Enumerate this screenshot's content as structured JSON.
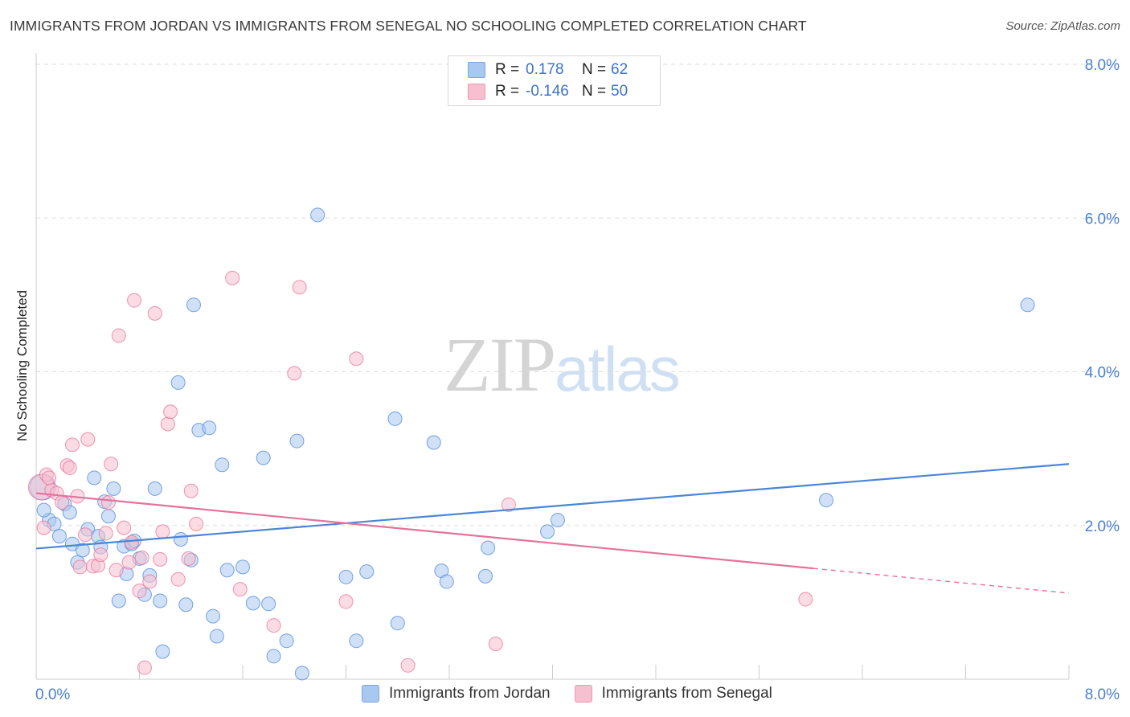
{
  "title": "IMMIGRANTS FROM JORDAN VS IMMIGRANTS FROM SENEGAL NO SCHOOLING COMPLETED CORRELATION CHART",
  "source": "Source: ZipAtlas.com",
  "watermark": {
    "part1": "ZIP",
    "part2": "atlas"
  },
  "legend": {
    "rows": [
      {
        "r_label": "R =",
        "r_value": "0.178",
        "n_label": "N =",
        "n_value": "62",
        "color": "#a9c8f0",
        "border": "#7aa6e0"
      },
      {
        "r_label": "R =",
        "r_value": "-0.146",
        "n_label": "N =",
        "n_value": "50",
        "color": "#f7c0d0",
        "border": "#ee98b2"
      }
    ]
  },
  "bottom_legend": [
    {
      "label": "Immigrants from Jordan",
      "color": "#a9c8f0",
      "border": "#7aa6e0"
    },
    {
      "label": "Immigrants from Senegal",
      "color": "#f7c0d0",
      "border": "#ee98b2"
    }
  ],
  "chart_data": {
    "type": "scatter",
    "title": "IMMIGRANTS FROM JORDAN VS IMMIGRANTS FROM SENEGAL NO SCHOOLING COMPLETED CORRELATION CHART",
    "xlabel": "",
    "ylabel": "No Schooling Completed",
    "xlim": [
      0,
      8
    ],
    "ylim": [
      0,
      8
    ],
    "x_tick_labels": [
      "0.0%",
      "8.0%"
    ],
    "y_ticks": [
      2,
      4,
      6,
      8
    ],
    "y_tick_labels": [
      "2.0%",
      "4.0%",
      "6.0%",
      "8.0%"
    ],
    "grid": true,
    "legend_position": "top-center",
    "series": [
      {
        "name": "Immigrants from Jordan",
        "color": "#4a86d8",
        "fill": "#a9c8f0",
        "r": 0.178,
        "n": 62,
        "trend": {
          "x": [
            0,
            8
          ],
          "y": [
            1.7,
            2.8
          ],
          "dashed_from": null
        },
        "points": [
          [
            0.05,
            2.5
          ],
          [
            0.1,
            2.07
          ],
          [
            0.14,
            2.02
          ],
          [
            0.18,
            1.86
          ],
          [
            0.22,
            2.28
          ],
          [
            0.26,
            2.17
          ],
          [
            0.28,
            1.76
          ],
          [
            0.32,
            1.52
          ],
          [
            0.36,
            1.68
          ],
          [
            0.4,
            1.95
          ],
          [
            0.45,
            2.62
          ],
          [
            0.48,
            1.86
          ],
          [
            0.5,
            1.72
          ],
          [
            0.53,
            2.31
          ],
          [
            0.56,
            2.12
          ],
          [
            0.6,
            2.48
          ],
          [
            0.64,
            1.02
          ],
          [
            0.68,
            1.73
          ],
          [
            0.7,
            1.37
          ],
          [
            0.74,
            1.76
          ],
          [
            0.76,
            1.8
          ],
          [
            0.8,
            1.57
          ],
          [
            0.84,
            1.1
          ],
          [
            0.88,
            1.35
          ],
          [
            0.92,
            2.48
          ],
          [
            0.96,
            1.02
          ],
          [
            0.98,
            0.36
          ],
          [
            1.1,
            3.86
          ],
          [
            1.12,
            1.82
          ],
          [
            1.16,
            0.97
          ],
          [
            1.2,
            1.55
          ],
          [
            1.22,
            4.87
          ],
          [
            1.26,
            3.24
          ],
          [
            1.34,
            3.27
          ],
          [
            1.37,
            0.82
          ],
          [
            1.4,
            0.56
          ],
          [
            1.44,
            2.79
          ],
          [
            1.48,
            1.42
          ],
          [
            1.6,
            1.46
          ],
          [
            1.68,
            0.99
          ],
          [
            1.76,
            2.88
          ],
          [
            1.8,
            0.98
          ],
          [
            1.84,
            0.3
          ],
          [
            1.94,
            0.5
          ],
          [
            2.02,
            3.1
          ],
          [
            2.06,
            0.08
          ],
          [
            2.18,
            6.04
          ],
          [
            2.4,
            1.33
          ],
          [
            2.48,
            0.5
          ],
          [
            2.56,
            1.4
          ],
          [
            2.78,
            3.39
          ],
          [
            2.8,
            0.73
          ],
          [
            3.08,
            3.08
          ],
          [
            3.14,
            1.41
          ],
          [
            3.18,
            1.27
          ],
          [
            3.48,
            1.34
          ],
          [
            3.5,
            1.71
          ],
          [
            3.96,
            1.92
          ],
          [
            4.04,
            2.07
          ],
          [
            6.12,
            2.33
          ],
          [
            7.68,
            4.87
          ],
          [
            0.06,
            2.2
          ]
        ]
      },
      {
        "name": "Immigrants from Senegal",
        "color": "#e5729b",
        "fill": "#f7c0d0",
        "r": -0.146,
        "n": 50,
        "trend": {
          "x": [
            0,
            8
          ],
          "y": [
            2.42,
            1.12
          ],
          "dashed_from": 6.02
        },
        "points": [
          [
            0.04,
            2.5
          ],
          [
            0.06,
            1.97
          ],
          [
            0.08,
            2.66
          ],
          [
            0.12,
            2.46
          ],
          [
            0.16,
            2.42
          ],
          [
            0.2,
            2.3
          ],
          [
            0.24,
            2.78
          ],
          [
            0.26,
            2.75
          ],
          [
            0.28,
            3.05
          ],
          [
            0.32,
            2.38
          ],
          [
            0.34,
            1.46
          ],
          [
            0.38,
            1.88
          ],
          [
            0.4,
            3.12
          ],
          [
            0.44,
            1.47
          ],
          [
            0.48,
            1.48
          ],
          [
            0.5,
            1.62
          ],
          [
            0.54,
            1.9
          ],
          [
            0.56,
            2.3
          ],
          [
            0.58,
            2.8
          ],
          [
            0.62,
            1.42
          ],
          [
            0.64,
            4.47
          ],
          [
            0.68,
            1.97
          ],
          [
            0.72,
            1.52
          ],
          [
            0.74,
            1.78
          ],
          [
            0.76,
            4.93
          ],
          [
            0.8,
            1.15
          ],
          [
            0.82,
            1.58
          ],
          [
            0.84,
            0.15
          ],
          [
            0.88,
            1.27
          ],
          [
            0.92,
            4.76
          ],
          [
            0.96,
            1.56
          ],
          [
            0.98,
            1.92
          ],
          [
            1.02,
            3.32
          ],
          [
            1.04,
            3.48
          ],
          [
            1.1,
            1.3
          ],
          [
            1.18,
            1.57
          ],
          [
            1.2,
            2.45
          ],
          [
            1.24,
            2.02
          ],
          [
            1.52,
            5.22
          ],
          [
            1.58,
            1.17
          ],
          [
            1.84,
            0.7
          ],
          [
            2.0,
            3.98
          ],
          [
            2.04,
            5.1
          ],
          [
            2.4,
            1.01
          ],
          [
            2.48,
            4.17
          ],
          [
            2.88,
            0.18
          ],
          [
            3.56,
            0.46
          ],
          [
            3.66,
            2.27
          ],
          [
            5.96,
            1.04
          ],
          [
            0.1,
            2.62
          ]
        ]
      }
    ]
  }
}
